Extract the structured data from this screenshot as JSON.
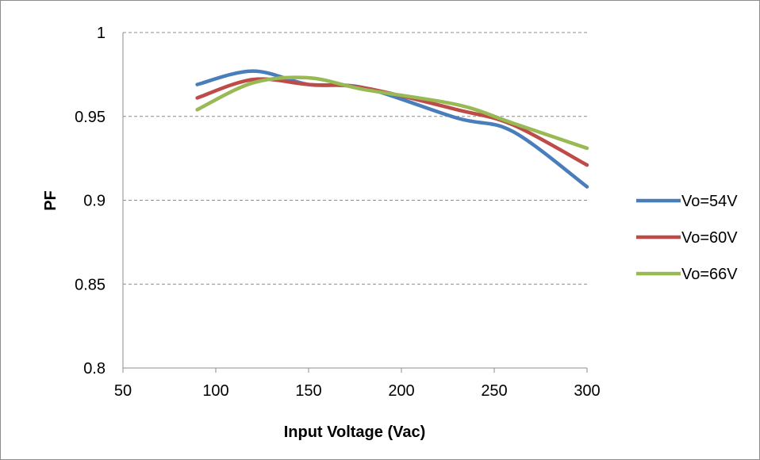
{
  "chart_data": {
    "type": "line",
    "title": "",
    "xlabel": "Input Voltage (Vac)",
    "ylabel": "PF",
    "xlim": [
      50,
      300
    ],
    "ylim": [
      0.8,
      1.0
    ],
    "x_ticks": [
      "50",
      "100",
      "150",
      "200",
      "250",
      "300"
    ],
    "y_ticks": [
      "0.8",
      "0.85",
      "0.9",
      "0.95",
      "1"
    ],
    "grid": "horizontal-dashed",
    "legend_position": "right",
    "smooth": true,
    "series": [
      {
        "name": "Vo=54V",
        "color": "#4a7ebb",
        "x": [
          90,
          120,
          150,
          180,
          230,
          260,
          300
        ],
        "y": [
          0.969,
          0.977,
          0.969,
          0.967,
          0.949,
          0.941,
          0.908
        ]
      },
      {
        "name": "Vo=60V",
        "color": "#be4b48",
        "x": [
          90,
          120,
          150,
          180,
          230,
          260,
          300
        ],
        "y": [
          0.961,
          0.972,
          0.969,
          0.967,
          0.954,
          0.945,
          0.921
        ]
      },
      {
        "name": "Vo=66V",
        "color": "#98b954",
        "x": [
          90,
          120,
          150,
          180,
          230,
          260,
          300
        ],
        "y": [
          0.954,
          0.97,
          0.973,
          0.966,
          0.957,
          0.946,
          0.931
        ]
      }
    ]
  }
}
